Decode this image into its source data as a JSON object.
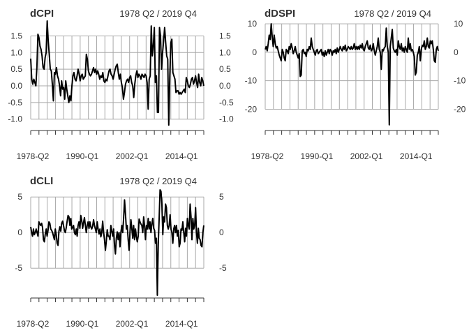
{
  "chart_data": [
    {
      "type": "line",
      "title": "dCPI",
      "subtitle": "1978 Q2 / 2019 Q4",
      "x_range": [
        "1978-Q2",
        "2019-Q4"
      ],
      "xtick_labels": [
        "1978-Q2",
        "1990-Q1",
        "2002-Q1",
        "2014-Q1"
      ],
      "yticks": [
        -1.0,
        -0.5,
        0.0,
        0.5,
        1.0,
        1.5
      ],
      "ytick_labels": [
        "-1.0",
        "-0.5",
        "0.0",
        "0.5",
        "1.0",
        "1.5"
      ],
      "ylim": [
        -1.3,
        1.95
      ],
      "grid": true,
      "series": [
        {
          "values": [
            0.82,
            0.2,
            0.05,
            0.2,
            0.1,
            0.0,
            0.55,
            1.55,
            1.45,
            1.2,
            1.1,
            0.9,
            0.55,
            0.5,
            0.85,
            1.0,
            1.95,
            1.35,
            0.95,
            0.5,
            0.45,
            0.05,
            -0.45,
            0.4,
            0.35,
            0.55,
            0.3,
            0.2,
            0.0,
            -0.3,
            0.15,
            -0.1,
            -0.05,
            -0.4,
            0.15,
            -0.1,
            -0.3,
            -0.5,
            -0.3,
            -0.45,
            0.0,
            0.3,
            0.4,
            0.2,
            0.15,
            0.3,
            0.5,
            0.35,
            0.15,
            0.3,
            0.35,
            0.2,
            0.25,
            0.3,
            0.95,
            0.8,
            0.45,
            0.35,
            0.3,
            0.35,
            0.45,
            0.55,
            0.4,
            0.5,
            0.35,
            0.45,
            0.35,
            0.2,
            0.3,
            0.25,
            0.4,
            0.15,
            0.1,
            0.2,
            0.15,
            0.3,
            0.45,
            0.5,
            0.35,
            0.3,
            0.2,
            0.35,
            0.5,
            0.6,
            0.65,
            0.4,
            0.2,
            0.35,
            0.1,
            -0.05,
            -0.4,
            -0.2,
            0.05,
            0.15,
            0.2,
            0.1,
            0.25,
            0.3,
            0.1,
            0.0,
            -0.35,
            0.05,
            0.3,
            0.45,
            0.25,
            0.35,
            0.3,
            0.2,
            0.35,
            0.3,
            0.25,
            0.35,
            0.3,
            0.1,
            -0.7,
            0.2,
            0.3,
            1.8,
            0.9,
            1.2,
            1.75,
            0.1,
            0.3,
            -0.8,
            -0.8,
            1.75,
            1.5,
            0.5,
            1.0,
            1.35,
            1.75,
            1.3,
            0.9,
            0.8,
            -1.18,
            0.3,
            1.3,
            1.4,
            0.4,
            0.3,
            0.2,
            -0.2,
            -0.15,
            -0.15,
            -0.25,
            -0.2,
            -0.25,
            -0.2,
            -0.15,
            -0.1,
            -0.2,
            0.25,
            0.15,
            0.0,
            -0.05,
            0.05,
            0.2,
            0.25,
            0.05,
            0.15,
            0.3,
            0.1,
            -0.05,
            0.35,
            0.1,
            0.0,
            0.25,
            0.15,
            0.0
          ]
        }
      ]
    },
    {
      "type": "line",
      "title": "dDSPI",
      "subtitle": "1978 Q2 / 2019 Q4",
      "x_range": [
        "1978-Q2",
        "2019-Q4"
      ],
      "xtick_labels": [
        "1978-Q2",
        "1990-Q1",
        "2002-Q1",
        "2014-Q1"
      ],
      "yticks": [
        -20,
        -10,
        0,
        10
      ],
      "ytick_labels": [
        "-20",
        "-10",
        "0",
        "10"
      ],
      "ylim": [
        -27,
        11
      ],
      "grid": true,
      "series": [
        {
          "values": [
            1.0,
            2.0,
            0.5,
            3.0,
            6.0,
            4.5,
            10.0,
            5.5,
            2.0,
            6.0,
            3.0,
            1.5,
            2.0,
            0.5,
            -1.0,
            -2.0,
            -3.0,
            1.0,
            0.0,
            -2.0,
            -3.0,
            1.0,
            0.5,
            -0.5,
            2.0,
            1.0,
            3.0,
            1.5,
            -0.5,
            0.5,
            2.0,
            0.0,
            -1.0,
            -2.0,
            -0.5,
            -8.5,
            -8.0,
            0.5,
            1.0,
            -0.5,
            0.0,
            -1.5,
            1.0,
            0.5,
            2.0,
            1.0,
            5.0,
            2.0,
            1.0,
            0.0,
            -1.0,
            0.5,
            1.0,
            -0.5,
            0.0,
            0.5,
            1.0,
            -1.0,
            0.0,
            -1.5,
            0.5,
            -1.0,
            0.0,
            1.0,
            -0.5,
            1.0,
            0.5,
            -1.0,
            0.5,
            0.0,
            1.0,
            -0.5,
            1.5,
            0.0,
            1.0,
            2.0,
            1.0,
            0.5,
            2.0,
            1.0,
            2.5,
            0.5,
            1.0,
            2.0,
            1.5,
            1.0,
            2.0,
            1.0,
            1.5,
            3.0,
            1.0,
            2.0,
            1.0,
            2.0,
            1.0,
            2.5,
            1.5,
            3.0,
            1.0,
            0.5,
            2.0,
            3.0,
            4.0,
            1.5,
            1.0,
            2.5,
            0.5,
            1.0,
            3.0,
            0.5,
            -1.0,
            0.5,
            2.0,
            5.0,
            1.0,
            0.0,
            -6.0,
            1.0,
            0.5,
            1.5,
            2.0,
            8.5,
            2.0,
            0.0,
            -25.5,
            2.0,
            5.0,
            8.0,
            1.5,
            0.5,
            0.0,
            1.0,
            -1.0,
            4.0,
            2.0,
            1.0,
            3.0,
            0.5,
            1.5,
            0.0,
            2.0,
            1.0,
            0.0,
            5.0,
            1.0,
            3.0,
            0.5,
            1.0,
            0.0,
            -1.5,
            -8.0,
            -7.0,
            -1.0,
            0.0,
            2.0,
            -3.0,
            1.0,
            2.5,
            2.0,
            4.0,
            1.0,
            2.0,
            5.0,
            2.0,
            1.5,
            4.0,
            3.0,
            4.0,
            1.0,
            -3.0,
            -3.5,
            1.0,
            2.0,
            0.5
          ]
        }
      ]
    },
    {
      "type": "line",
      "title": "dCLI",
      "subtitle": "1978 Q2 / 2019 Q4",
      "x_range": [
        "1978-Q2",
        "2019-Q4"
      ],
      "xtick_labels": [
        "1978-Q2",
        "1990-Q1",
        "2002-Q1",
        "2014-Q1"
      ],
      "yticks": [
        -5,
        0,
        5
      ],
      "ytick_labels": [
        "-5",
        "0",
        "5"
      ],
      "ylim": [
        -9.0,
        6.2
      ],
      "grid": true,
      "series": [
        {
          "values": [
            0.8,
            0.0,
            -0.5,
            0.5,
            -0.3,
            0.0,
            0.5,
            0.0,
            -0.5,
            1.5,
            1.2,
            1.0,
            1.3,
            0.7,
            -1.0,
            -1.3,
            -0.2,
            0.5,
            -0.5,
            0.3,
            1.5,
            1.3,
            0.5,
            0.3,
            0.0,
            -0.5,
            -1.0,
            0.5,
            -0.3,
            -1.5,
            -1.8,
            0.2,
            0.8,
            0.2,
            1.3,
            1.6,
            1.0,
            0.3,
            0.0,
            0.7,
            1.6,
            2.4,
            2.2,
            1.0,
            2.0,
            0.5,
            0.7,
            1.0,
            0.0,
            -0.3,
            0.5,
            -0.5,
            1.0,
            1.5,
            0.6,
            2.4,
            1.7,
            0.6,
            1.4,
            2.1,
            1.0,
            0.0,
            1.0,
            1.5,
            0.6,
            1.5,
            0.8,
            0.5,
            0.9,
            1.8,
            1.0,
            0.5,
            0.0,
            1.5,
            0.5,
            -0.2,
            0.5,
            -0.6,
            0.0,
            1.6,
            0.0,
            -1.0,
            -2.5,
            -1.2,
            0.4,
            -0.5,
            -0.5,
            -1.0,
            1.0,
            0.2,
            -0.5,
            0.5,
            -1.8,
            -3.0,
            -0.8,
            0.1,
            -1.0,
            0.0,
            -2.0,
            0.0,
            1.0,
            0.0,
            2.0,
            4.6,
            2.7,
            0.5,
            1.0,
            -1.0,
            -2.5,
            0.0,
            1.8,
            0.6,
            -0.8,
            1.0,
            -1.0,
            0.5,
            -0.6,
            -1.3,
            -0.5,
            1.9,
            1.5,
            1.2,
            1.0,
            0.0,
            2.2,
            0.9,
            -1.0,
            1.0,
            0.5,
            2.0,
            0.5,
            1.5,
            0.0,
            1.2,
            2.0,
            0.6,
            0.3,
            -1.5,
            -0.8,
            -8.8,
            -1.7,
            2.0,
            6.0,
            5.8,
            4.0,
            -0.3,
            2.2,
            1.5,
            4.0,
            3.5,
            1.0,
            0.5,
            1.0,
            2.5,
            0.5,
            0.0,
            -1.5,
            0.5,
            1.0,
            0.0,
            1.0,
            -0.5,
            0.3,
            -2.0,
            -1.5,
            0.5,
            0.3,
            1.5,
            0.0,
            -1.3,
            0.6,
            -0.5,
            2.0,
            1.0,
            0.5,
            4.0,
            2.2,
            -1.0,
            2.0,
            0.5,
            1.0,
            3.5,
            0.0,
            -1.5,
            0.6,
            -0.8,
            -1.0,
            -1.8,
            -2.0,
            0.0,
            1.0
          ]
        }
      ]
    }
  ]
}
